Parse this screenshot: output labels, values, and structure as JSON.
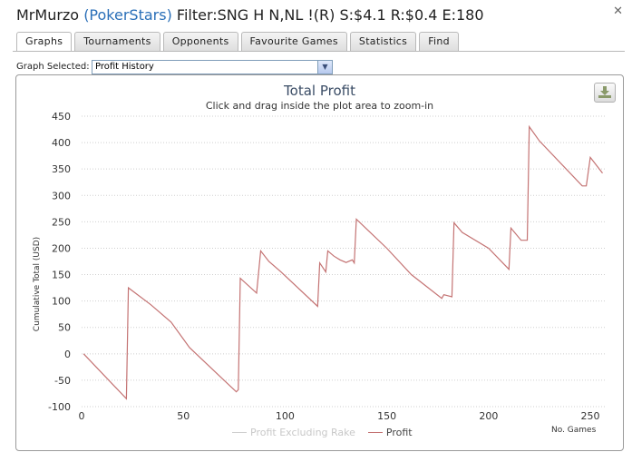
{
  "window": {
    "title_player": "MrMurzo",
    "title_site": "(PokerStars)",
    "title_filter": "Filter:SNG H N,NL !(R) S:$4.1 R:$0.4 E:180",
    "close_glyph": "✕"
  },
  "tabs": [
    {
      "label": "Graphs",
      "active": true
    },
    {
      "label": "Tournaments",
      "active": false
    },
    {
      "label": "Opponents",
      "active": false
    },
    {
      "label": "Favourite Games",
      "active": false
    },
    {
      "label": "Statistics",
      "active": false
    },
    {
      "label": "Find",
      "active": false
    }
  ],
  "graph_selector": {
    "label": "Graph Selected:",
    "value": "Profit History"
  },
  "colors": {
    "profit": "#c47373",
    "profit_excluding_rake": "#cfcfcf",
    "grid": "#cfcfcf",
    "title": "#3b4d66"
  },
  "chart_data": {
    "type": "line",
    "title": "Total Profit",
    "subtitle": "Click and drag inside the plot area to zoom-in",
    "xlabel": "No. Games",
    "ylabel": "Cumulative Total (USD)",
    "xlim": [
      0,
      258
    ],
    "ylim": [
      -100,
      450
    ],
    "x_ticks": [
      0,
      50,
      100,
      150,
      200,
      250
    ],
    "y_ticks": [
      -100,
      -50,
      0,
      50,
      100,
      150,
      200,
      250,
      300,
      350,
      400,
      450
    ],
    "grid": true,
    "legend_position": "bottom",
    "series": [
      {
        "name": "Profit Excluding Rake",
        "visible": false,
        "x": [],
        "y": []
      },
      {
        "name": "Profit",
        "visible": true,
        "x": [
          1,
          22,
          23,
          34,
          44,
          53,
          76,
          77,
          78,
          86,
          88,
          92,
          98,
          116,
          117,
          120,
          121,
          124,
          127,
          130,
          133,
          134,
          135,
          150,
          162,
          177,
          178,
          182,
          183,
          187,
          200,
          210,
          211,
          216,
          219,
          220,
          225,
          246,
          248,
          250,
          256
        ],
        "y": [
          0,
          -85,
          125,
          93,
          60,
          12,
          -72,
          -68,
          143,
          115,
          195,
          175,
          155,
          90,
          172,
          155,
          195,
          185,
          178,
          173,
          178,
          172,
          255,
          200,
          150,
          105,
          112,
          108,
          248,
          230,
          200,
          160,
          238,
          215,
          215,
          430,
          403,
          318,
          318,
          372,
          342
        ]
      }
    ]
  }
}
